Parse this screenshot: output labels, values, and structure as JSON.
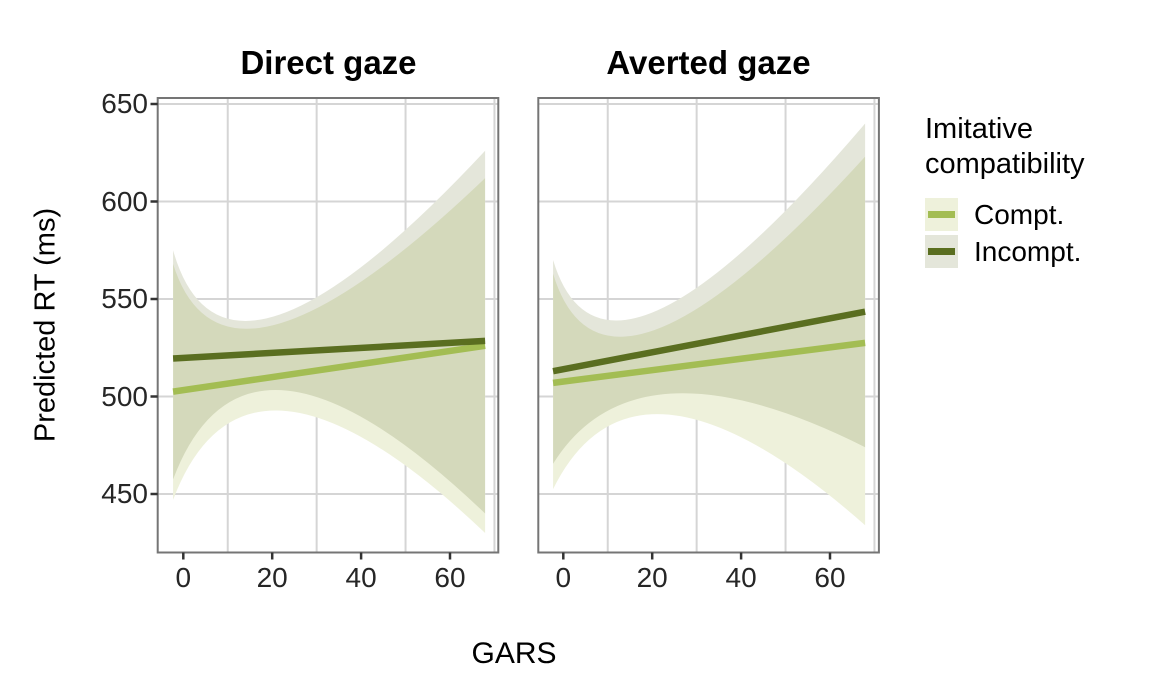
{
  "chart_data": {
    "type": "line",
    "xlabel": "GARS",
    "ylabel": "Predicted RT (ms)",
    "x_ticks": [
      0,
      20,
      40,
      60
    ],
    "y_ticks": [
      650,
      600,
      550,
      500,
      450
    ],
    "x_gridlines": [
      10,
      30,
      50,
      70
    ],
    "xlim": [
      -5.7,
      70.9
    ],
    "ylim": [
      420,
      653
    ],
    "grid": "on",
    "legend_position": "right",
    "facets": [
      {
        "label": "Direct gaze",
        "series": [
          {
            "name": "Incompt.",
            "line": {
              "x": [
                -2.3,
                67.9
              ],
              "y": [
                519.5,
                528.5
              ]
            },
            "ribbon": {
              "upper": {
                "x": [
                  -2.3,
                  21,
                  67.9
                ],
                "y": [
                  575,
                  541.5,
                  626
                ]
              },
              "lower": {
                "x": [
                  -2.3,
                  23.5,
                  67.9
                ],
                "y": [
                  457.5,
                  503,
                  440
                ]
              }
            }
          },
          {
            "name": "Compt.",
            "line": {
              "x": [
                -2.3,
                67.9
              ],
              "y": [
                502.5,
                526
              ]
            },
            "ribbon": {
              "upper": {
                "x": [
                  -2.3,
                  21,
                  67.9
                ],
                "y": [
                  568,
                  537,
                  612
                ]
              },
              "lower": {
                "x": [
                  -2.3,
                  23.5,
                  67.9
                ],
                "y": [
                  447,
                  492.5,
                  430
                ]
              }
            }
          }
        ]
      },
      {
        "label": "Averted gaze",
        "series": [
          {
            "name": "Incompt.",
            "line": {
              "x": [
                -2.3,
                67.9
              ],
              "y": [
                513,
                543.5
              ]
            },
            "ribbon": {
              "upper": {
                "x": [
                  -2.3,
                  21,
                  67.9
                ],
                "y": [
                  570,
                  544,
                  640
                ]
              },
              "lower": {
                "x": [
                  -2.3,
                  24.5,
                  67.9
                ],
                "y": [
                  465.5,
                  501.5,
                  474
                ]
              }
            }
          },
          {
            "name": "Compt.",
            "line": {
              "x": [
                -2.3,
                67.9
              ],
              "y": [
                507,
                527.5
              ]
            },
            "ribbon": {
              "upper": {
                "x": [
                  -2.3,
                  21,
                  67.9
                ],
                "y": [
                  563,
                  534.5,
                  623
                ]
              },
              "lower": {
                "x": [
                  -2.3,
                  24.5,
                  67.9
                ],
                "y": [
                  452.5,
                  490.5,
                  434
                ]
              }
            }
          }
        ]
      }
    ]
  },
  "legend": {
    "title": "Imitative compatibility",
    "entries": [
      {
        "label": "Compt.",
        "line_color": "#a3bd53",
        "fill_color": "#eef1db"
      },
      {
        "label": "Incompt.",
        "line_color": "#5a6e20",
        "fill_color": "#e4e6da"
      }
    ]
  },
  "colors": {
    "compt_line": "#a3bd53",
    "incompt_line": "#5a6e20",
    "compt_fill": "#eef1db",
    "incompt_fill": "#e4e6da",
    "gridline": "#d5d5d5",
    "panel_border": "#757575",
    "tick_mark": "#333333",
    "text": "#000000"
  }
}
